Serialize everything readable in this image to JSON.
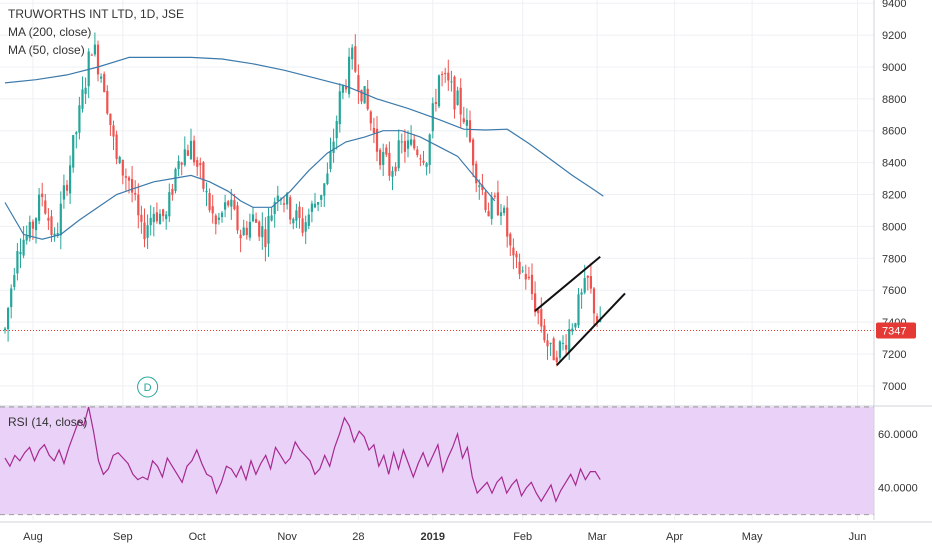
{
  "header": {
    "symbol_line": "TRUWORTHS INT LTD, 1D, JSE",
    "ma200_label": "MA (200, close)",
    "ma50_label": "MA (50, close)",
    "rsi_label": "RSI (14, close)"
  },
  "colors": {
    "up": "#26a69a",
    "down": "#ef5350",
    "ma": "#3c7aab",
    "rsi_line": "#a52a8f",
    "rsi_band": "#ead1f7",
    "price_line": "#e53935",
    "dividend": "#26a69a"
  },
  "dividend_marker": "D",
  "chart_data": [
    {
      "type": "candlestick",
      "title": "TRUWORTHS INT LTD, 1D, JSE",
      "x_tick_labels": [
        "Aug",
        "Sep",
        "Oct",
        "Nov",
        "28",
        "2019",
        "Feb",
        "Mar",
        "Apr",
        "May",
        "Jun"
      ],
      "y_ticks": [
        7000,
        7200,
        7400,
        7600,
        7800,
        8000,
        8200,
        8400,
        8600,
        8800,
        9000,
        9200,
        9400
      ],
      "ylim": [
        6880,
        9420
      ],
      "last_price": 7347,
      "last_price_label": "7347",
      "close_series": {
        "x": [
          0,
          4,
          8,
          12,
          16,
          20,
          24,
          28,
          32,
          36,
          40,
          44,
          48,
          52,
          56,
          60,
          64,
          68,
          72,
          76,
          80,
          84,
          88,
          92,
          96,
          100,
          104,
          108,
          112,
          116,
          120,
          124,
          128,
          132,
          136,
          140,
          144,
          148,
          152,
          156,
          160,
          164,
          168,
          172,
          176,
          180,
          184,
          188,
          192
        ],
        "y": [
          7350,
          7900,
          7950,
          8200,
          7900,
          8300,
          8700,
          9150,
          8900,
          8400,
          8300,
          7950,
          8100,
          8050,
          8450,
          8500,
          8250,
          8000,
          8150,
          7950,
          8050,
          7950,
          8250,
          8100,
          8000,
          8150,
          8300,
          8800,
          9050,
          8800,
          8500,
          8350,
          8500,
          8500,
          8450,
          8950,
          8850,
          8700,
          8350,
          8100,
          8150,
          7750,
          7700,
          7450,
          7200,
          7250,
          7450,
          7650,
          7347
        ]
      },
      "ma200": {
        "x": [
          0,
          10,
          20,
          30,
          40,
          50,
          60,
          70,
          80,
          90,
          100,
          110,
          120,
          130,
          140,
          148,
          155,
          162,
          169,
          176,
          183,
          190,
          193
        ],
        "y": [
          8900,
          8920,
          8950,
          9000,
          9060,
          9060,
          9060,
          9050,
          9020,
          8980,
          8930,
          8880,
          8800,
          8740,
          8670,
          8610,
          8605,
          8610,
          8520,
          8420,
          8320,
          8230,
          8190
        ]
      },
      "ma50": {
        "x": [
          0,
          6,
          12,
          18,
          24,
          30,
          36,
          42,
          48,
          54,
          60,
          66,
          72,
          76,
          80,
          86,
          92,
          98,
          104,
          110,
          116,
          122,
          128,
          134,
          140,
          146,
          152,
          158
        ],
        "y": [
          8150,
          7950,
          7920,
          7950,
          8040,
          8120,
          8200,
          8240,
          8280,
          8300,
          8320,
          8280,
          8220,
          8160,
          8120,
          8120,
          8220,
          8350,
          8460,
          8530,
          8560,
          8600,
          8600,
          8560,
          8500,
          8440,
          8300,
          8160
        ]
      },
      "trend_lines": [
        {
          "x": [
            171,
            192
          ],
          "y": [
            7470,
            7810
          ]
        },
        {
          "x": [
            178,
            200
          ],
          "y": [
            7130,
            7580
          ]
        }
      ]
    },
    {
      "type": "line",
      "title": "RSI (14, close)",
      "y_tick_labels": [
        "60.0000",
        "40.0000"
      ],
      "y_ticks": [
        60,
        40
      ],
      "ylim": [
        28,
        70
      ],
      "band": [
        30,
        70
      ],
      "series": [
        {
          "values": [
            51,
            48,
            52,
            50,
            53,
            55,
            50,
            54,
            56,
            52,
            50,
            54,
            49,
            55,
            60,
            65,
            63,
            70,
            61,
            50,
            45,
            47,
            52,
            53,
            51,
            49,
            45,
            43,
            44,
            43,
            50,
            48,
            44,
            51,
            48,
            45,
            42,
            48,
            50,
            54,
            49,
            45,
            44,
            38,
            42,
            48,
            47,
            44,
            48,
            43,
            50,
            45,
            49,
            52,
            47,
            55,
            52,
            49,
            51,
            57,
            54,
            52,
            50,
            45,
            47,
            52,
            48,
            55,
            60,
            66,
            63,
            57,
            61,
            59,
            54,
            56,
            48,
            52,
            45,
            53,
            47,
            54,
            49,
            44,
            49,
            53,
            48,
            52,
            56,
            46,
            51,
            55,
            60,
            51,
            55,
            44,
            38,
            40,
            42,
            38,
            42,
            44,
            38,
            41,
            43,
            37,
            40,
            42,
            38,
            35,
            38,
            41,
            35,
            39,
            42,
            45,
            41,
            47,
            43,
            46,
            46,
            43
          ]
        }
      ]
    }
  ]
}
